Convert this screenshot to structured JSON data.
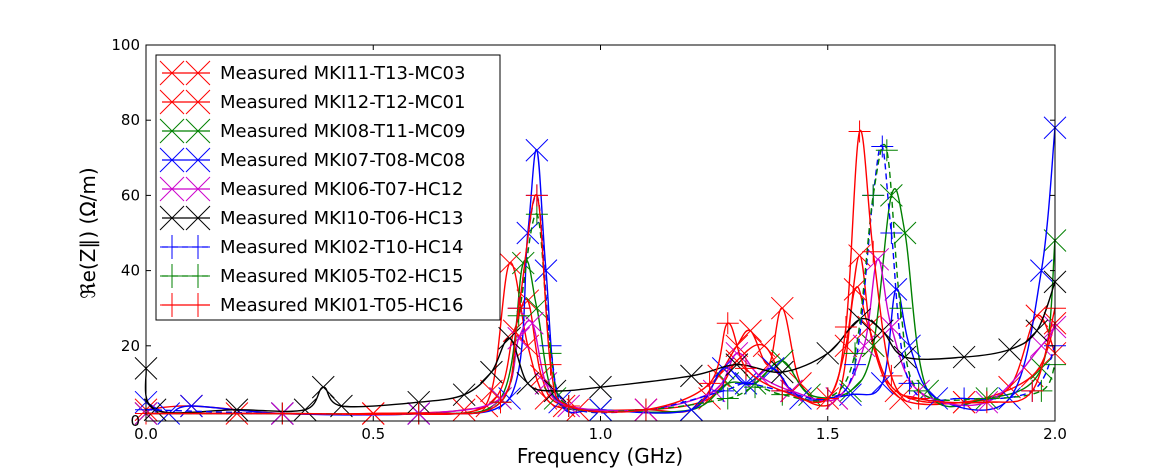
{
  "chart_data": {
    "type": "line",
    "title": "",
    "xlabel": "Frequency (GHz)",
    "ylabel": "ℜe(Z∥) (Ω/m)",
    "xlim": [
      0.0,
      2.0
    ],
    "ylim": [
      0,
      100
    ],
    "x_ticks": [
      "0.0",
      "0.5",
      "1.0",
      "1.5",
      "2.0"
    ],
    "y_ticks": [
      "0",
      "20",
      "40",
      "60",
      "80",
      "100"
    ],
    "legend_position": "upper-left",
    "series": [
      {
        "name": "Measured MKI11-T13-MC03",
        "color": "#ff0000",
        "marker": "x",
        "dash": "",
        "points": [
          [
            0,
            3
          ],
          [
            0.1,
            4
          ],
          [
            0.3,
            2
          ],
          [
            0.5,
            2
          ],
          [
            0.7,
            3
          ],
          [
            0.76,
            8
          ],
          [
            0.8,
            42
          ],
          [
            0.84,
            20
          ],
          [
            0.88,
            6
          ],
          [
            0.95,
            3
          ],
          [
            1.1,
            3
          ],
          [
            1.2,
            3
          ],
          [
            1.26,
            12
          ],
          [
            1.3,
            20
          ],
          [
            1.33,
            24
          ],
          [
            1.37,
            15
          ],
          [
            1.4,
            30
          ],
          [
            1.44,
            10
          ],
          [
            1.5,
            6
          ],
          [
            1.54,
            20
          ],
          [
            1.57,
            44
          ],
          [
            1.6,
            20
          ],
          [
            1.66,
            6
          ],
          [
            1.8,
            5
          ],
          [
            1.9,
            9
          ],
          [
            1.96,
            28
          ],
          [
            2.0,
            18
          ]
        ]
      },
      {
        "name": "Measured MKI12-T12-MC01",
        "color": "#ff0000",
        "marker": "x",
        "dash": "",
        "points": [
          [
            0,
            2
          ],
          [
            0.2,
            2
          ],
          [
            0.5,
            2
          ],
          [
            0.75,
            4
          ],
          [
            0.81,
            24
          ],
          [
            0.84,
            32
          ],
          [
            0.87,
            12
          ],
          [
            0.92,
            4
          ],
          [
            1.1,
            3
          ],
          [
            1.24,
            6
          ],
          [
            1.3,
            16
          ],
          [
            1.36,
            20
          ],
          [
            1.42,
            8
          ],
          [
            1.52,
            6
          ],
          [
            1.56,
            35
          ],
          [
            1.59,
            25
          ],
          [
            1.65,
            8
          ],
          [
            1.8,
            5
          ],
          [
            1.95,
            12
          ],
          [
            2.0,
            26
          ]
        ]
      },
      {
        "name": "Measured MKI08-T11-MC09",
        "color": "#008000",
        "marker": "x",
        "dash": "",
        "points": [
          [
            0,
            2
          ],
          [
            0.3,
            2
          ],
          [
            0.6,
            2
          ],
          [
            0.78,
            6
          ],
          [
            0.83,
            42
          ],
          [
            0.86,
            30
          ],
          [
            0.9,
            6
          ],
          [
            1.0,
            3
          ],
          [
            1.2,
            3
          ],
          [
            1.28,
            10
          ],
          [
            1.34,
            10
          ],
          [
            1.4,
            16
          ],
          [
            1.46,
            7
          ],
          [
            1.55,
            8
          ],
          [
            1.6,
            20
          ],
          [
            1.64,
            60
          ],
          [
            1.67,
            50
          ],
          [
            1.72,
            8
          ],
          [
            1.85,
            6
          ],
          [
            1.97,
            14
          ],
          [
            2.0,
            48
          ]
        ]
      },
      {
        "name": "Measured MKI07-T08-MC08",
        "color": "#0000ff",
        "marker": "x",
        "dash": "",
        "points": [
          [
            0,
            5
          ],
          [
            0.05,
            2
          ],
          [
            0.1,
            4
          ],
          [
            0.3,
            2
          ],
          [
            0.6,
            2
          ],
          [
            0.8,
            6
          ],
          [
            0.84,
            50
          ],
          [
            0.86,
            72
          ],
          [
            0.88,
            40
          ],
          [
            0.91,
            5
          ],
          [
            1.0,
            3
          ],
          [
            1.2,
            3
          ],
          [
            1.27,
            14
          ],
          [
            1.32,
            10
          ],
          [
            1.38,
            14
          ],
          [
            1.44,
            6
          ],
          [
            1.55,
            7
          ],
          [
            1.62,
            10
          ],
          [
            1.65,
            35
          ],
          [
            1.68,
            20
          ],
          [
            1.74,
            6
          ],
          [
            1.9,
            6
          ],
          [
            1.97,
            40
          ],
          [
            2.0,
            78
          ]
        ]
      },
      {
        "name": "Measured MKI06-T07-HC12",
        "color": "#cc00cc",
        "marker": "x",
        "dash": "",
        "points": [
          [
            0,
            2
          ],
          [
            0.3,
            2
          ],
          [
            0.6,
            2
          ],
          [
            0.78,
            6
          ],
          [
            0.82,
            22
          ],
          [
            0.85,
            26
          ],
          [
            0.88,
            10
          ],
          [
            0.93,
            4
          ],
          [
            1.1,
            3
          ],
          [
            1.25,
            8
          ],
          [
            1.3,
            18
          ],
          [
            1.35,
            12
          ],
          [
            1.42,
            8
          ],
          [
            1.52,
            6
          ],
          [
            1.58,
            20
          ],
          [
            1.61,
            43
          ],
          [
            1.64,
            25
          ],
          [
            1.7,
            8
          ],
          [
            1.85,
            5
          ],
          [
            1.97,
            20
          ],
          [
            2.0,
            25
          ]
        ]
      },
      {
        "name": "Measured MKI10-T06-HC13",
        "color": "#000000",
        "marker": "x",
        "dash": "",
        "points": [
          [
            0,
            14
          ],
          [
            0.02,
            3
          ],
          [
            0.2,
            3
          ],
          [
            0.35,
            3
          ],
          [
            0.39,
            9
          ],
          [
            0.43,
            4
          ],
          [
            0.6,
            5
          ],
          [
            0.7,
            7
          ],
          [
            0.76,
            13
          ],
          [
            0.8,
            22
          ],
          [
            0.84,
            10
          ],
          [
            0.9,
            8
          ],
          [
            1.0,
            9
          ],
          [
            1.2,
            12
          ],
          [
            1.3,
            15
          ],
          [
            1.4,
            13
          ],
          [
            1.5,
            18
          ],
          [
            1.57,
            27
          ],
          [
            1.62,
            24
          ],
          [
            1.67,
            17
          ],
          [
            1.8,
            17
          ],
          [
            1.9,
            19
          ],
          [
            1.96,
            24
          ],
          [
            2.0,
            37
          ]
        ]
      },
      {
        "name": "Measured MKI02-T10-HC14",
        "color": "#0000ff",
        "marker": "+",
        "dash": "6,4",
        "points": [
          [
            0,
            3
          ],
          [
            0.3,
            2
          ],
          [
            0.6,
            2
          ],
          [
            0.78,
            5
          ],
          [
            0.82,
            30
          ],
          [
            0.86,
            60
          ],
          [
            0.89,
            20
          ],
          [
            0.93,
            4
          ],
          [
            1.1,
            3
          ],
          [
            1.27,
            8
          ],
          [
            1.32,
            10
          ],
          [
            1.4,
            8
          ],
          [
            1.5,
            6
          ],
          [
            1.56,
            15
          ],
          [
            1.6,
            60
          ],
          [
            1.62,
            73
          ],
          [
            1.64,
            50
          ],
          [
            1.68,
            10
          ],
          [
            1.8,
            6
          ],
          [
            1.95,
            8
          ],
          [
            2.0,
            20
          ]
        ]
      },
      {
        "name": "Measured MKI05-T02-HC15",
        "color": "#008000",
        "marker": "+",
        "dash": "6,4",
        "points": [
          [
            0,
            2
          ],
          [
            0.3,
            2
          ],
          [
            0.6,
            2
          ],
          [
            0.78,
            5
          ],
          [
            0.82,
            28
          ],
          [
            0.86,
            55
          ],
          [
            0.89,
            18
          ],
          [
            0.93,
            4
          ],
          [
            1.1,
            3
          ],
          [
            1.28,
            6
          ],
          [
            1.34,
            9
          ],
          [
            1.4,
            7
          ],
          [
            1.5,
            6
          ],
          [
            1.56,
            18
          ],
          [
            1.6,
            60
          ],
          [
            1.63,
            72
          ],
          [
            1.66,
            30
          ],
          [
            1.7,
            8
          ],
          [
            1.85,
            6
          ],
          [
            1.97,
            8
          ],
          [
            2.0,
            15
          ]
        ]
      },
      {
        "name": "Measured MKI01-T05-HC16",
        "color": "#ff0000",
        "marker": "+",
        "dash": "",
        "points": [
          [
            0,
            2
          ],
          [
            0.3,
            2
          ],
          [
            0.6,
            2
          ],
          [
            0.78,
            5
          ],
          [
            0.82,
            30
          ],
          [
            0.86,
            60
          ],
          [
            0.89,
            15
          ],
          [
            0.93,
            4
          ],
          [
            1.1,
            3
          ],
          [
            1.24,
            10
          ],
          [
            1.28,
            26
          ],
          [
            1.32,
            14
          ],
          [
            1.4,
            8
          ],
          [
            1.5,
            6
          ],
          [
            1.54,
            25
          ],
          [
            1.57,
            77
          ],
          [
            1.6,
            45
          ],
          [
            1.64,
            12
          ],
          [
            1.7,
            6
          ],
          [
            1.85,
            5
          ],
          [
            1.95,
            8
          ],
          [
            2.0,
            30
          ]
        ]
      }
    ]
  }
}
